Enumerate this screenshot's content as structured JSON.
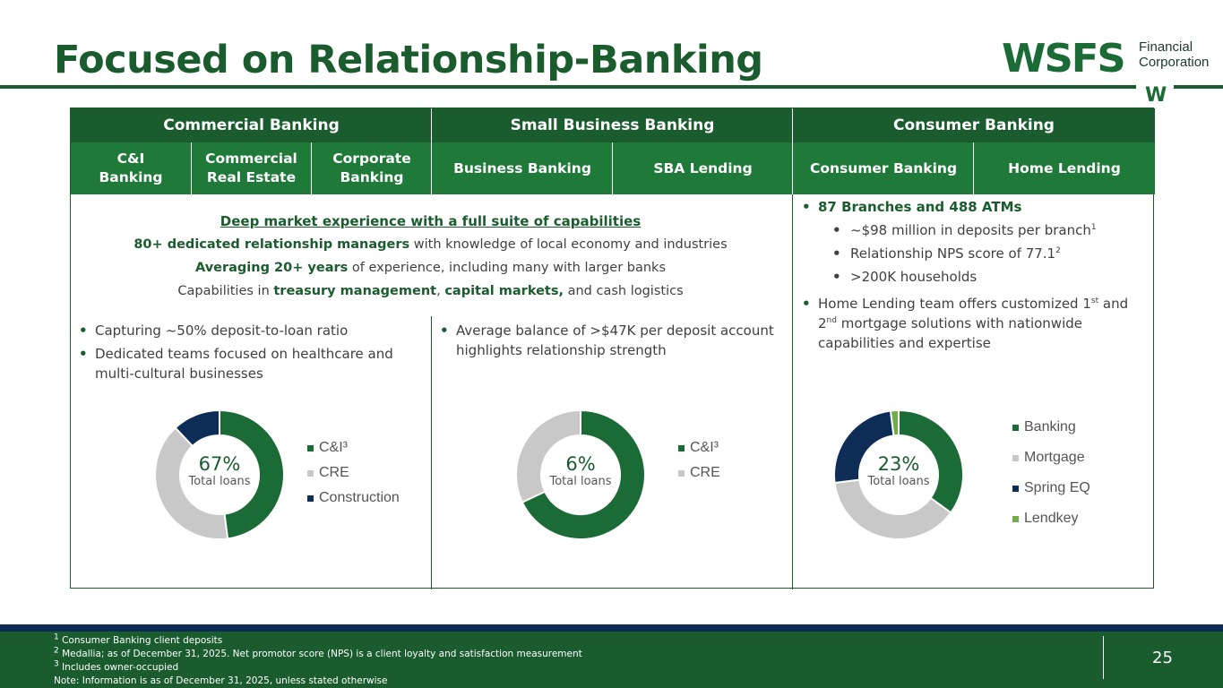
{
  "title": "Focused on Relationship-Banking",
  "logo": {
    "brand": "WSFS",
    "line1": "Financial",
    "line2": "Corporation",
    "mark": "W"
  },
  "headers": {
    "commercial": "Commercial Banking",
    "small_business": "Small Business Banking",
    "consumer": "Consumer Banking"
  },
  "subheaders": {
    "ci_1": "C&I",
    "ci_2": "Banking",
    "cre_1": "Commercial",
    "cre_2": "Real Estate",
    "corp_1": "Corporate",
    "corp_2": "Banking",
    "business": "Business Banking",
    "sba": "SBA Lending",
    "consumer": "Consumer Banking",
    "home": "Home Lending"
  },
  "center": {
    "heading": "Deep market experience with a full suite of capabilities",
    "l1_bold": "80+ dedicated relationship managers",
    "l1_rest": " with knowledge of local economy and industries",
    "l2_bold": "Averaging 20+ years",
    "l2_rest": " of experience, including many with larger banks",
    "l3_a": "Capabilities in ",
    "l3_b": "treasury management",
    "l3_c": ", ",
    "l3_d": "capital markets,",
    "l3_e": " and cash logistics"
  },
  "commercial_bullets": {
    "b1": "Capturing ~50% deposit-to-loan ratio",
    "b2": "Dedicated teams focused on healthcare and multi-cultural businesses"
  },
  "small_business_bullets": {
    "b1": "Average balance of >$47K per deposit account highlights relationship strength"
  },
  "consumer_bullets": {
    "b1": "87 Branches and 488 ATMs",
    "s1": "~$98 million in deposits per branch",
    "s1_sup": "1",
    "s2": "Relationship NPS score of 77.1",
    "s2_sup": "2",
    "s3": ">200K households",
    "b2_a": "Home Lending team offers customized 1",
    "b2_sup1": "st",
    "b2_b": " and 2",
    "b2_sup2": "nd",
    "b2_c": " mortgage solutions with nationwide capabilities and expertise"
  },
  "chart_data": [
    {
      "type": "pie",
      "donut": true,
      "center_value": "67%",
      "center_label": "Total loans",
      "categories": [
        "C&I³",
        "CRE",
        "Construction"
      ],
      "values": [
        48,
        40,
        12
      ],
      "colors": [
        "#1a6b35",
        "#c8c8c8",
        "#0d2c56"
      ],
      "legend": "right"
    },
    {
      "type": "pie",
      "donut": true,
      "center_value": "6%",
      "center_label": "Total loans",
      "categories": [
        "C&I³",
        "CRE"
      ],
      "values": [
        68,
        32
      ],
      "colors": [
        "#1a6b35",
        "#c8c8c8"
      ],
      "legend": "right"
    },
    {
      "type": "pie",
      "donut": true,
      "center_value": "23%",
      "center_label": "Total loans",
      "categories": [
        "Banking",
        "Mortgage",
        "Spring EQ",
        "Lendkey"
      ],
      "values": [
        35,
        38,
        25,
        2
      ],
      "colors": [
        "#1a6b35",
        "#c8c8c8",
        "#0d2c56",
        "#70ad47"
      ],
      "legend": "right"
    }
  ],
  "footnotes": {
    "f1_sup": "1",
    "f1": " Consumer Banking client deposits",
    "f2_sup": "2",
    "f2": " Medallia; as of December 31, 2025. Net promotor score (NPS) is a client loyalty and satisfaction measurement",
    "f3_sup": "3",
    "f3": " Includes owner-occupied",
    "note": "Note: Information is as of December 31, 2025, unless stated otherwise"
  },
  "page_number": "25"
}
